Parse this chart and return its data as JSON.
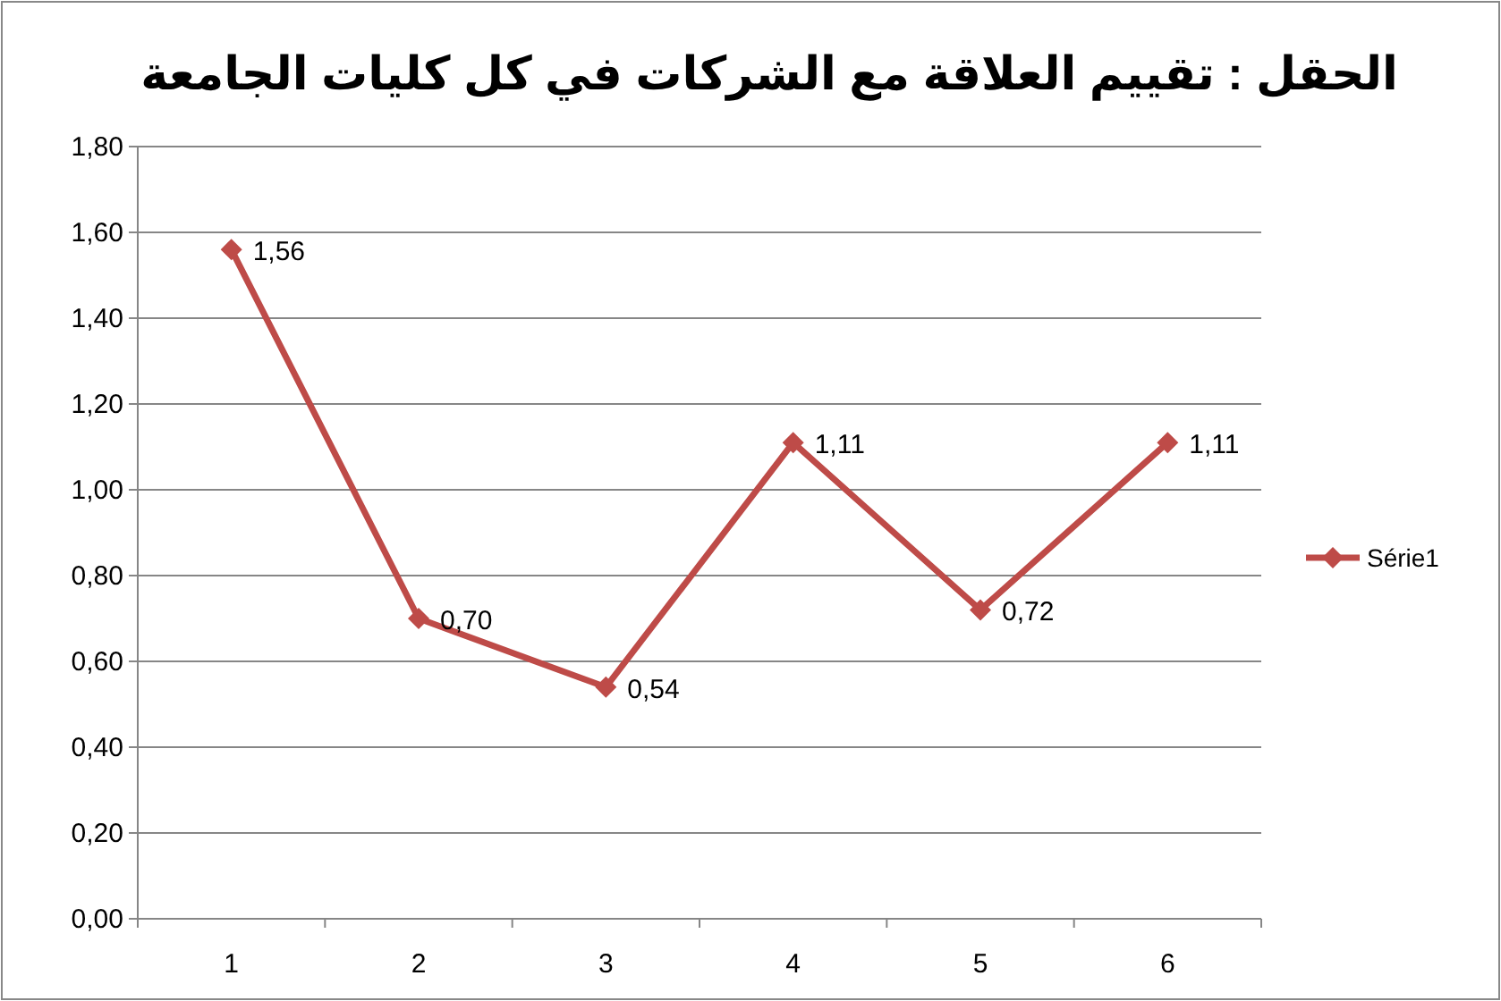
{
  "chart_data": {
    "type": "line",
    "title": "الحقل : تقييم العلاقة مع الشركات في كل كليات الجامعة",
    "categories": [
      "1",
      "2",
      "3",
      "4",
      "5",
      "6"
    ],
    "series": [
      {
        "name": "Série1",
        "color": "#be4b48",
        "values": [
          1.56,
          0.7,
          0.54,
          1.11,
          0.72,
          1.11
        ],
        "value_labels": [
          "1,56",
          "0,70",
          "0,54",
          "1,11",
          "0,72",
          "1,11"
        ]
      }
    ],
    "ylim": [
      0,
      1.8
    ],
    "yticks": [
      {
        "value": 0,
        "label": "0,00"
      },
      {
        "value": 0.2,
        "label": "0,20"
      },
      {
        "value": 0.4,
        "label": "0,40"
      },
      {
        "value": 0.6,
        "label": "0,60"
      },
      {
        "value": 0.8,
        "label": "0,80"
      },
      {
        "value": 1.0,
        "label": "1,00"
      },
      {
        "value": 1.2,
        "label": "1,20"
      },
      {
        "value": 1.4,
        "label": "1,40"
      },
      {
        "value": 1.6,
        "label": "1,60"
      },
      {
        "value": 1.8,
        "label": "1,80"
      }
    ],
    "grid": "y",
    "legend": "right",
    "marker": "diamond",
    "line_style": "solid"
  }
}
